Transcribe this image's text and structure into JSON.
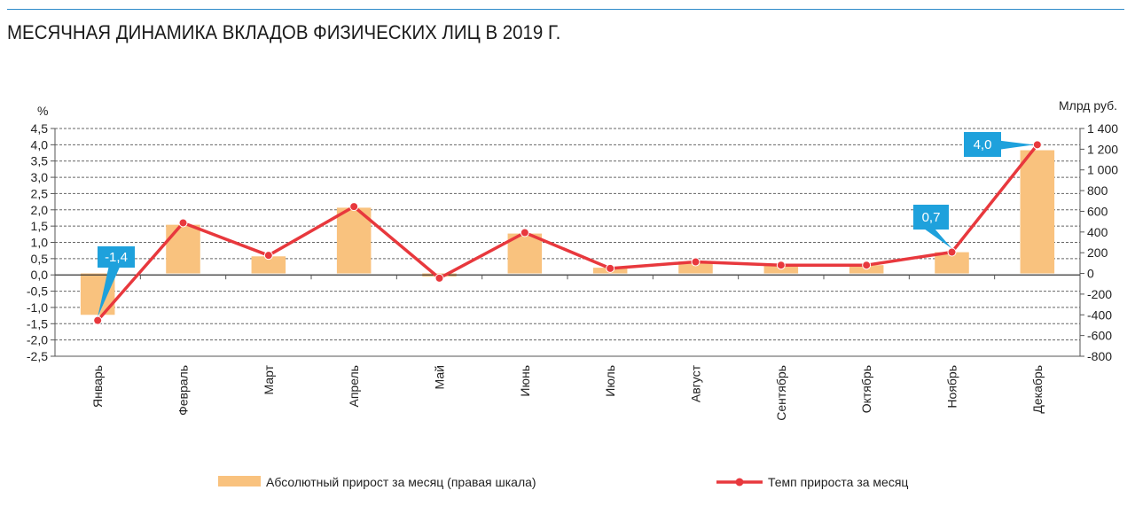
{
  "title": "МЕСЯЧНАЯ ДИНАМИКА ВКЛАДОВ ФИЗИЧЕСКИХ ЛИЦ В 2019 Г.",
  "chart_data": {
    "type": "bar",
    "title": "МЕСЯЧНАЯ ДИНАМИКА ВКЛАДОВ ФИЗИЧЕСКИХ ЛИЦ В 2019 Г.",
    "categories": [
      "Январь",
      "Февраль",
      "Март",
      "Апрель",
      "Май",
      "Июнь",
      "Июль",
      "Август",
      "Сентябрь",
      "Октябрь",
      "Ноябрь",
      "Декабрь"
    ],
    "left_axis": {
      "unit": "%",
      "ylim": [
        -2.5,
        4.5
      ],
      "ticks": [
        4.5,
        4.0,
        3.5,
        3.0,
        2.5,
        2.0,
        1.5,
        1.0,
        0.5,
        0.0,
        -0.5,
        -1.0,
        -1.5,
        -2.0,
        -2.5
      ],
      "tick_labels": [
        "4,5",
        "4,0",
        "3,5",
        "3,0",
        "2,5",
        "2,0",
        "1,5",
        "1,0",
        "0,5",
        "0,0",
        "-0,5",
        "-1,0",
        "-1,5",
        "-2,0",
        "-2,5"
      ]
    },
    "right_axis": {
      "unit": "Млрд руб.",
      "ylim": [
        -800,
        1400
      ],
      "ticks": [
        1400,
        1200,
        1000,
        800,
        600,
        400,
        200,
        0,
        -200,
        -400,
        -600,
        -800
      ],
      "tick_labels": [
        "1 400",
        "1 200",
        "1 000",
        "800",
        "600",
        "400",
        "200",
        "0",
        "-200",
        "-400",
        "-600",
        "-800"
      ]
    },
    "series": [
      {
        "name": "Абсолютный прирост за месяц (правая шкала)",
        "type": "bar",
        "axis": "right",
        "color": "#f9c27e",
        "values": [
          -400,
          470,
          165,
          635,
          -30,
          385,
          55,
          115,
          90,
          80,
          205,
          1190
        ]
      },
      {
        "name": "Темп прироста за месяц",
        "type": "line",
        "axis": "left",
        "color": "#e8383d",
        "values": [
          -1.4,
          1.6,
          0.6,
          2.1,
          -0.1,
          1.3,
          0.2,
          0.4,
          0.3,
          0.3,
          0.7,
          4.0
        ]
      }
    ],
    "annotations": [
      {
        "category": "Январь",
        "text": "-1,4"
      },
      {
        "category": "Ноябрь",
        "text": "0,7"
      },
      {
        "category": "Декабрь",
        "text": "4,0"
      }
    ],
    "grid": true,
    "legend_position": "bottom"
  },
  "colors": {
    "bar": "#f9c27e",
    "line": "#e8383d",
    "callout": "#1ea1dc",
    "grid": "#666666",
    "rule": "#2e8bc9"
  }
}
